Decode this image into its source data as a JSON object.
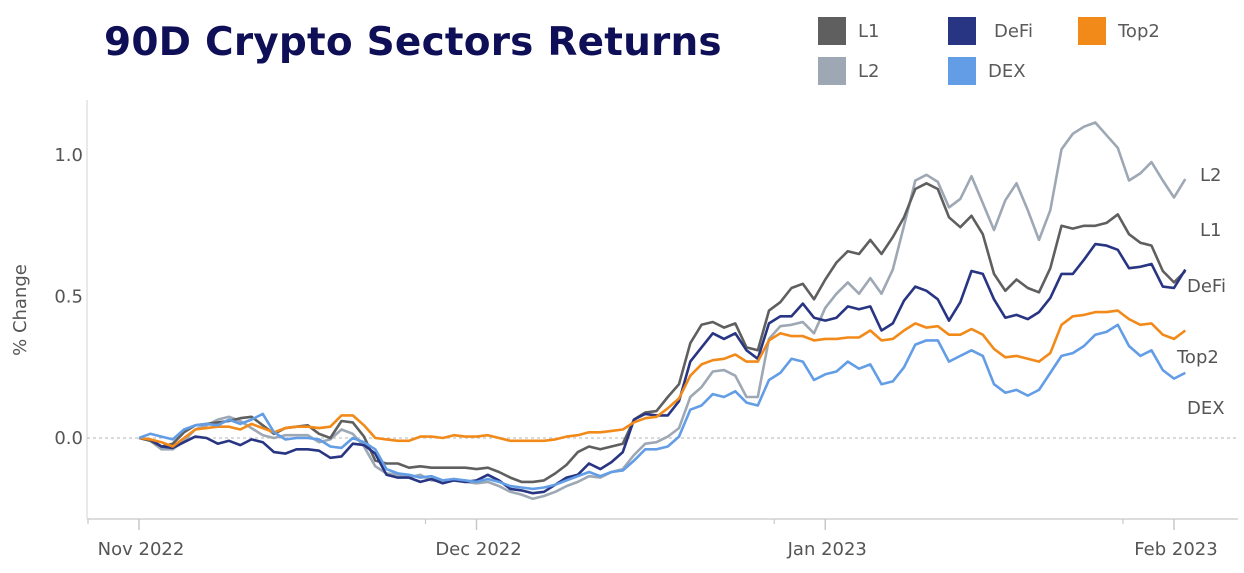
{
  "chart_data": {
    "type": "line",
    "title": "90D Crypto Sectors Returns",
    "xlabel": "",
    "ylabel": "% Change",
    "ylim": [
      -0.29,
      1.2
    ],
    "yticks": [
      {
        "value": 0.0,
        "label": "0.0"
      },
      {
        "value": 0.5,
        "label": "0.5"
      },
      {
        "value": 1.0,
        "label": "1.0"
      }
    ],
    "xticks": [
      {
        "date": "2022-11-01",
        "label": "Nov 2022"
      },
      {
        "date": "2022-12-01",
        "label": "Dec 2022"
      },
      {
        "date": "2023-01-01",
        "label": "Jan 2023"
      },
      {
        "date": "2023-02-01",
        "label": "Feb 2023"
      }
    ],
    "grid": false,
    "zero_line": "dashed",
    "legend_position": "top-right",
    "x": [
      "2022-11-01",
      "2022-11-02",
      "2022-11-03",
      "2022-11-04",
      "2022-11-05",
      "2022-11-06",
      "2022-11-07",
      "2022-11-08",
      "2022-11-09",
      "2022-11-10",
      "2022-11-11",
      "2022-11-12",
      "2022-11-13",
      "2022-11-14",
      "2022-11-15",
      "2022-11-16",
      "2022-11-17",
      "2022-11-18",
      "2022-11-19",
      "2022-11-20",
      "2022-11-21",
      "2022-11-22",
      "2022-11-23",
      "2022-11-24",
      "2022-11-25",
      "2022-11-26",
      "2022-11-27",
      "2022-11-28",
      "2022-11-29",
      "2022-11-30",
      "2022-12-01",
      "2022-12-02",
      "2022-12-03",
      "2022-12-04",
      "2022-12-05",
      "2022-12-06",
      "2022-12-07",
      "2022-12-08",
      "2022-12-09",
      "2022-12-10",
      "2022-12-11",
      "2022-12-12",
      "2022-12-13",
      "2022-12-14",
      "2022-12-15",
      "2022-12-16",
      "2022-12-17",
      "2022-12-18",
      "2022-12-19",
      "2022-12-20",
      "2022-12-21",
      "2022-12-22",
      "2022-12-23",
      "2022-12-24",
      "2022-12-25",
      "2022-12-26",
      "2022-12-27",
      "2022-12-28",
      "2022-12-29",
      "2022-12-30",
      "2022-12-31",
      "2023-01-01",
      "2023-01-02",
      "2023-01-03",
      "2023-01-04",
      "2023-01-05",
      "2023-01-06",
      "2023-01-07",
      "2023-01-08",
      "2023-01-09",
      "2023-01-10",
      "2023-01-11",
      "2023-01-12",
      "2023-01-13",
      "2023-01-14",
      "2023-01-15",
      "2023-01-16",
      "2023-01-17",
      "2023-01-18",
      "2023-01-19",
      "2023-01-20",
      "2023-01-21",
      "2023-01-22",
      "2023-01-23",
      "2023-01-24",
      "2023-01-25",
      "2023-01-26",
      "2023-01-27",
      "2023-01-28",
      "2023-01-29",
      "2023-01-30",
      "2023-01-31",
      "2023-02-01",
      "2023-02-02"
    ],
    "series": [
      {
        "name": "L1",
        "color": "#5f5f5f",
        "values": [
          0,
          -0.01,
          -0.03,
          -0.02,
          0.02,
          0.045,
          0.05,
          0.055,
          0.06,
          0.07,
          0.075,
          0.045,
          0.015,
          0.035,
          0.04,
          0.045,
          0.015,
          0,
          0.06,
          0.055,
          0.005,
          -0.08,
          -0.09,
          -0.09,
          -0.105,
          -0.1,
          -0.105,
          -0.105,
          -0.105,
          -0.105,
          -0.11,
          -0.105,
          -0.12,
          -0.14,
          -0.155,
          -0.155,
          -0.15,
          -0.125,
          -0.095,
          -0.05,
          -0.03,
          -0.04,
          -0.03,
          -0.02,
          0.065,
          0.09,
          0.095,
          0.145,
          0.19,
          0.335,
          0.4,
          0.41,
          0.39,
          0.405,
          0.32,
          0.31,
          0.45,
          0.48,
          0.53,
          0.545,
          0.49,
          0.56,
          0.62,
          0.66,
          0.65,
          0.7,
          0.65,
          0.71,
          0.78,
          0.88,
          0.9,
          0.88,
          0.78,
          0.745,
          0.785,
          0.72,
          0.58,
          0.52,
          0.56,
          0.53,
          0.515,
          0.6,
          0.75,
          0.74,
          0.75,
          0.75,
          0.76,
          0.79,
          0.72,
          0.69,
          0.68,
          0.59,
          0.55,
          0.59
        ]
      },
      {
        "name": "L2",
        "color": "#9ea8b5",
        "values": [
          0,
          -0.01,
          -0.04,
          -0.04,
          -0.01,
          0.03,
          0.045,
          0.065,
          0.075,
          0.06,
          0.035,
          0.01,
          0,
          0.01,
          0.01,
          0.01,
          -0.015,
          -0.005,
          0.03,
          0.015,
          -0.03,
          -0.1,
          -0.125,
          -0.13,
          -0.14,
          -0.13,
          -0.15,
          -0.15,
          -0.145,
          -0.155,
          -0.16,
          -0.155,
          -0.17,
          -0.19,
          -0.2,
          -0.215,
          -0.205,
          -0.19,
          -0.17,
          -0.155,
          -0.135,
          -0.14,
          -0.12,
          -0.11,
          -0.06,
          -0.02,
          -0.015,
          0.005,
          0.035,
          0.145,
          0.18,
          0.235,
          0.24,
          0.22,
          0.145,
          0.145,
          0.35,
          0.395,
          0.4,
          0.41,
          0.37,
          0.46,
          0.51,
          0.55,
          0.51,
          0.565,
          0.51,
          0.595,
          0.75,
          0.91,
          0.93,
          0.905,
          0.815,
          0.845,
          0.925,
          0.83,
          0.735,
          0.84,
          0.9,
          0.805,
          0.7,
          0.805,
          1.02,
          1.075,
          1.1,
          1.115,
          1.07,
          1.025,
          0.91,
          0.935,
          0.975,
          0.91,
          0.85,
          0.915
        ]
      },
      {
        "name": "DeFi",
        "color": "#283583",
        "values": [
          0,
          -0.005,
          -0.03,
          -0.035,
          -0.015,
          0.005,
          0,
          -0.02,
          -0.01,
          -0.025,
          -0.005,
          -0.015,
          -0.05,
          -0.055,
          -0.04,
          -0.04,
          -0.045,
          -0.07,
          -0.065,
          -0.02,
          -0.025,
          -0.055,
          -0.13,
          -0.14,
          -0.14,
          -0.155,
          -0.145,
          -0.16,
          -0.15,
          -0.155,
          -0.15,
          -0.13,
          -0.15,
          -0.18,
          -0.185,
          -0.195,
          -0.19,
          -0.165,
          -0.14,
          -0.13,
          -0.09,
          -0.11,
          -0.085,
          -0.05,
          0.065,
          0.085,
          0.08,
          0.08,
          0.13,
          0.27,
          0.32,
          0.37,
          0.35,
          0.37,
          0.31,
          0.28,
          0.405,
          0.43,
          0.43,
          0.475,
          0.425,
          0.415,
          0.425,
          0.465,
          0.455,
          0.465,
          0.38,
          0.405,
          0.485,
          0.535,
          0.52,
          0.49,
          0.415,
          0.48,
          0.59,
          0.58,
          0.49,
          0.425,
          0.435,
          0.42,
          0.445,
          0.495,
          0.58,
          0.58,
          0.63,
          0.685,
          0.68,
          0.665,
          0.6,
          0.605,
          0.615,
          0.535,
          0.53,
          0.595
        ]
      },
      {
        "name": "DEX",
        "color": "#629de6",
        "values": [
          0,
          0.015,
          0.005,
          -0.005,
          0.03,
          0.045,
          0.05,
          0.045,
          0.065,
          0.05,
          0.065,
          0.085,
          0.02,
          -0.005,
          0,
          0,
          -0.005,
          -0.03,
          -0.035,
          0,
          -0.015,
          -0.04,
          -0.11,
          -0.125,
          -0.13,
          -0.14,
          -0.135,
          -0.15,
          -0.145,
          -0.15,
          -0.155,
          -0.145,
          -0.155,
          -0.17,
          -0.175,
          -0.18,
          -0.175,
          -0.165,
          -0.15,
          -0.135,
          -0.12,
          -0.135,
          -0.12,
          -0.115,
          -0.08,
          -0.04,
          -0.04,
          -0.03,
          0.005,
          0.1,
          0.115,
          0.155,
          0.145,
          0.165,
          0.125,
          0.115,
          0.205,
          0.23,
          0.28,
          0.27,
          0.205,
          0.225,
          0.235,
          0.27,
          0.245,
          0.26,
          0.19,
          0.2,
          0.25,
          0.33,
          0.345,
          0.345,
          0.27,
          0.29,
          0.31,
          0.29,
          0.19,
          0.16,
          0.17,
          0.15,
          0.17,
          0.23,
          0.29,
          0.3,
          0.325,
          0.365,
          0.375,
          0.4,
          0.325,
          0.29,
          0.31,
          0.24,
          0.21,
          0.23
        ]
      },
      {
        "name": "Top2",
        "color": "#f28a1a",
        "values": [
          0,
          -0.005,
          -0.015,
          -0.03,
          0,
          0.03,
          0.035,
          0.04,
          0.04,
          0.03,
          0.05,
          0.035,
          0.02,
          0.035,
          0.04,
          0.04,
          0.035,
          0.04,
          0.08,
          0.08,
          0.045,
          0,
          -0.005,
          -0.01,
          -0.01,
          0.005,
          0.005,
          0,
          0.01,
          0.005,
          0.005,
          0.01,
          0,
          -0.01,
          -0.01,
          -0.01,
          -0.01,
          -0.005,
          0.005,
          0.01,
          0.02,
          0.02,
          0.025,
          0.03,
          0.055,
          0.07,
          0.075,
          0.105,
          0.14,
          0.22,
          0.26,
          0.275,
          0.28,
          0.295,
          0.27,
          0.27,
          0.345,
          0.37,
          0.36,
          0.36,
          0.345,
          0.35,
          0.35,
          0.355,
          0.355,
          0.38,
          0.345,
          0.35,
          0.38,
          0.405,
          0.39,
          0.395,
          0.365,
          0.365,
          0.385,
          0.365,
          0.315,
          0.285,
          0.29,
          0.28,
          0.27,
          0.3,
          0.4,
          0.43,
          0.435,
          0.445,
          0.445,
          0.45,
          0.42,
          0.4,
          0.405,
          0.365,
          0.35,
          0.38
        ]
      }
    ]
  }
}
